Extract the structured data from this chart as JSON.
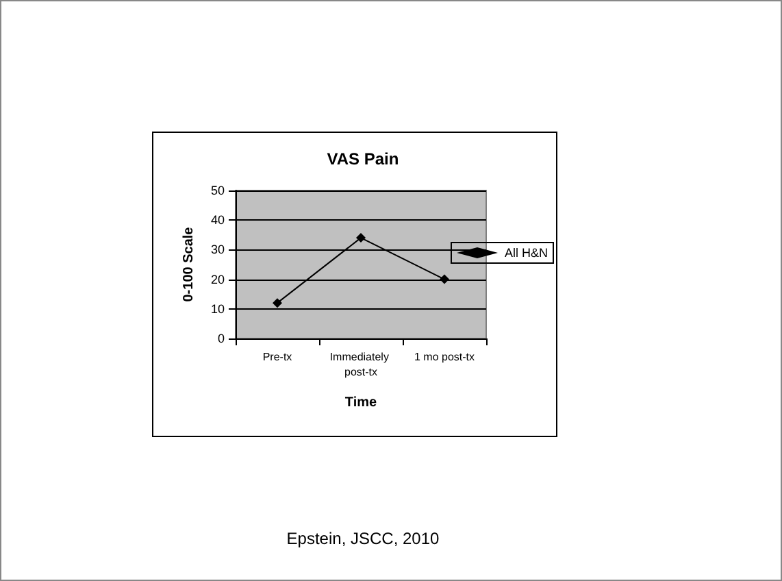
{
  "chart_data": {
    "type": "line",
    "title": "VAS Pain",
    "xlabel": "Time",
    "ylabel": "0-100 Scale",
    "categories": [
      "Pre-tx",
      "Immediately post-tx",
      "1 mo post-tx"
    ],
    "series": [
      {
        "name": "All H&N",
        "color": "#000000",
        "values": [
          12,
          34,
          20
        ]
      }
    ],
    "ylim": [
      0,
      50
    ],
    "yticks": [
      0,
      10,
      20,
      30,
      40,
      50
    ],
    "grid": "y",
    "legend": "right",
    "marker": "diamond",
    "line_style": "solid",
    "annotations": [
      "Epstein, JSCC, 2010"
    ]
  }
}
